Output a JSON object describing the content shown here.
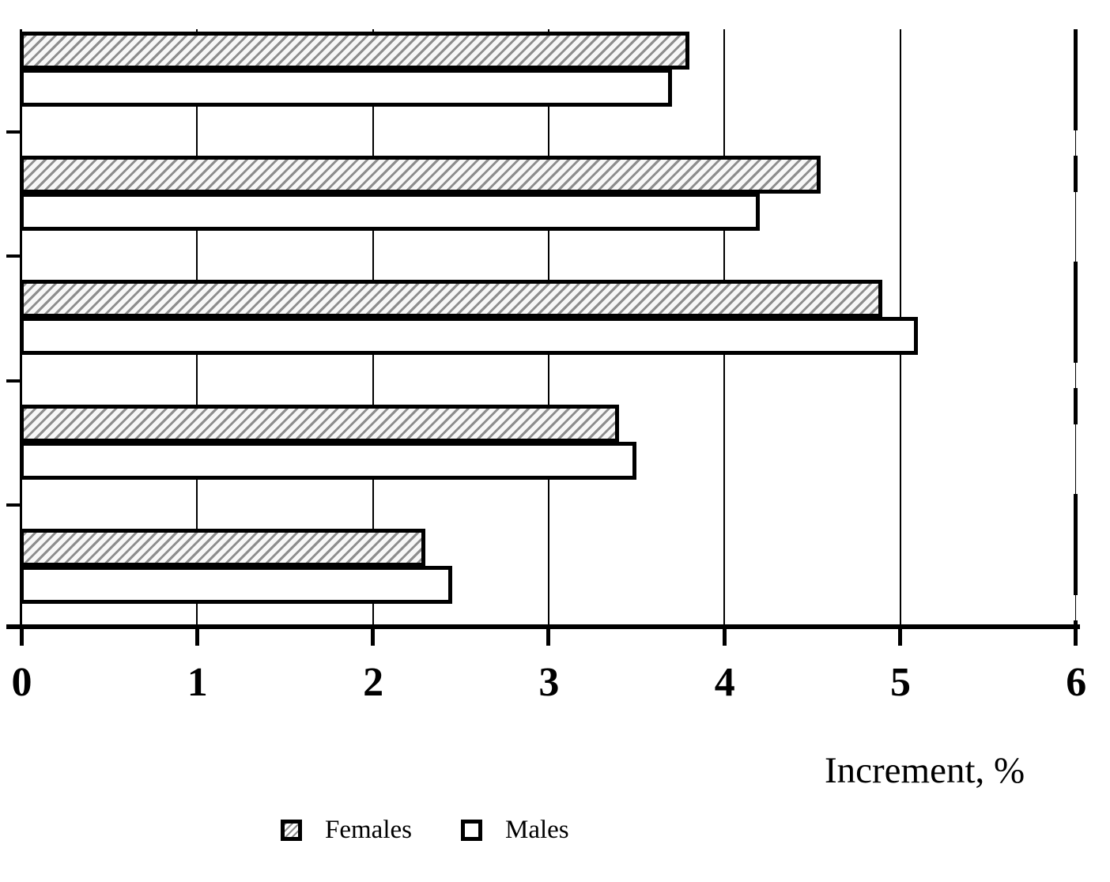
{
  "chart_data": {
    "type": "bar",
    "orientation": "horizontal",
    "title": "",
    "xlabel": "Increment, %",
    "ylabel": "",
    "xlim": [
      0,
      6
    ],
    "xticks": [
      0,
      1,
      2,
      3,
      4,
      5,
      6
    ],
    "grid": true,
    "grid_axis": "x",
    "legend_position": "bottom",
    "categories": [
      "",
      "",
      "",
      "",
      ""
    ],
    "series": [
      {
        "name": "Females",
        "style": "hatched",
        "values": [
          3.8,
          4.55,
          4.9,
          3.4,
          2.3
        ]
      },
      {
        "name": "Males",
        "style": "white",
        "values": [
          3.7,
          4.2,
          5.1,
          3.5,
          2.45
        ]
      }
    ]
  },
  "axis": {
    "x_tick_labels": [
      "0",
      "1",
      "2",
      "3",
      "4",
      "5",
      "6"
    ],
    "xlabel": "Increment, %"
  },
  "legend": {
    "items": [
      {
        "label": "Females",
        "swatch": "hatched"
      },
      {
        "label": "Males",
        "swatch": "white"
      }
    ]
  },
  "colors": {
    "ink": "#000000",
    "hatch_line": "#8d8d8d",
    "background": "#ffffff"
  }
}
